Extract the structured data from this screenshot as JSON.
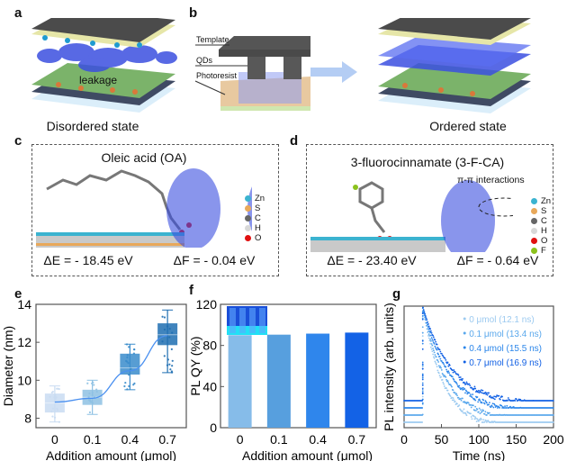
{
  "panels": {
    "a": {
      "label": "a",
      "leakage": "leakage",
      "caption": "Disordered state"
    },
    "b": {
      "label": "b",
      "template": "Template",
      "qds": "QDs",
      "photoresist": "Photoresist",
      "caption": "Ordered state"
    },
    "c": {
      "label": "c",
      "title": "Oleic acid (OA)",
      "dE": "ΔE = - 18.45 eV",
      "dF": "ΔF = - 0.04 eV",
      "legend": [
        {
          "el": "Zn",
          "color": "#3bb3d0"
        },
        {
          "el": "S",
          "color": "#e8a85a"
        },
        {
          "el": "C",
          "color": "#666666"
        },
        {
          "el": "H",
          "color": "#d8d8d8"
        },
        {
          "el": "O",
          "color": "#e01010"
        }
      ]
    },
    "d": {
      "label": "d",
      "title": "3-fluorocinnamate (3-F-CA)",
      "interaction": "π-π interactions",
      "dE": "ΔE = - 23.40 eV",
      "dF": "ΔF = - 0.64 eV",
      "legend": [
        {
          "el": "Zn",
          "color": "#3bb3d0"
        },
        {
          "el": "S",
          "color": "#e8a85a"
        },
        {
          "el": "C",
          "color": "#666666"
        },
        {
          "el": "H",
          "color": "#d8d8d8"
        },
        {
          "el": "O",
          "color": "#e01010"
        },
        {
          "el": "F",
          "color": "#8bc21c"
        }
      ]
    },
    "e": {
      "label": "e"
    },
    "f": {
      "label": "f"
    },
    "g": {
      "label": "g"
    }
  },
  "chart_data": [
    {
      "panel": "e",
      "type": "box",
      "categories": [
        "0",
        "0.1",
        "0.4",
        "0.7"
      ],
      "xlabel": "Addition amount (μmol)",
      "ylabel": "Diameter (nm)",
      "ylim": [
        7.5,
        14
      ],
      "yticks": [
        8,
        10,
        12,
        14
      ],
      "boxes": [
        {
          "min": 7.8,
          "q1": 8.3,
          "median": 8.8,
          "q3": 9.3,
          "max": 9.7,
          "mean": 8.85,
          "color": "#c9dcf2"
        },
        {
          "min": 8.2,
          "q1": 8.7,
          "median": 9.1,
          "q3": 9.5,
          "max": 10.0,
          "mean": 9.05,
          "color": "#8ec1e3"
        },
        {
          "min": 9.5,
          "q1": 10.3,
          "median": 10.65,
          "q3": 11.4,
          "max": 11.9,
          "mean": 10.5,
          "color": "#3a8ccb"
        },
        {
          "min": 10.4,
          "q1": 11.85,
          "median": 12.4,
          "q3": 13.0,
          "max": 13.7,
          "mean": 12.35,
          "color": "#1f6fb2"
        }
      ],
      "fit_color": "#4a90f0"
    },
    {
      "panel": "f",
      "type": "bar",
      "categories": [
        "0",
        "0.1",
        "0.4",
        "0.7"
      ],
      "values": [
        90,
        90.5,
        91.5,
        92.5
      ],
      "colors": [
        "#86bce9",
        "#579fde",
        "#2f86ec",
        "#1362e6"
      ],
      "xlabel": "Addition amount (μmol)",
      "ylabel": "PL QY (%)",
      "ylim": [
        0,
        120
      ],
      "yticks": [
        0,
        40,
        80,
        120
      ]
    },
    {
      "panel": "g",
      "type": "scatter",
      "xlabel": "Time (ns)",
      "ylabel": "PL intensity (arb. units)",
      "xlim": [
        0,
        200
      ],
      "xticks": [
        0,
        50,
        100,
        150,
        200
      ],
      "legend_position": "top-right",
      "series": [
        {
          "name": "0 μmol (12.1 ns)",
          "lifetime_ns": 12.1,
          "color": "#9ccaf0"
        },
        {
          "name": "0.1 μmol (13.4 ns)",
          "lifetime_ns": 13.4,
          "color": "#5aa8ec"
        },
        {
          "name": "0.4 μmol (15.5 ns)",
          "lifetime_ns": 15.5,
          "color": "#2b86ea"
        },
        {
          "name": "0.7 μmol (16.9 ns)",
          "lifetime_ns": 16.9,
          "color": "#1160e4"
        }
      ]
    }
  ]
}
